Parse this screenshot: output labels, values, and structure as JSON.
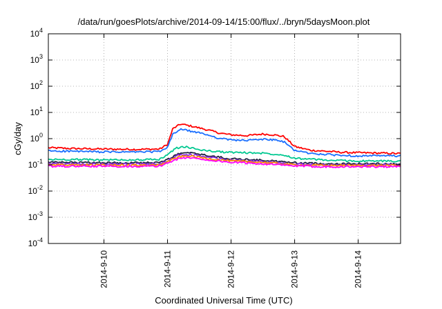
{
  "chart_data": {
    "type": "line",
    "title": "/data/run/goesPlots/archive/2014-09-14/15:00/flux/../bryn/5daysMoon.plot",
    "xlabel": "Coordinated Universal Time (UTC)",
    "ylabel": "cGy/day",
    "yscale": "log",
    "ylim": [
      0.0001,
      10000
    ],
    "xlim": [
      "2014-09-09T03:00",
      "2014-09-14T16:00"
    ],
    "grid": true,
    "x_ticks": [
      {
        "label": "2014-9-10",
        "date": "2014-09-10T00:00"
      },
      {
        "label": "2014-9-11",
        "date": "2014-09-11T00:00"
      },
      {
        "label": "2014-9-12",
        "date": "2014-09-12T00:00"
      },
      {
        "label": "2014-9-13",
        "date": "2014-09-13T00:00"
      },
      {
        "label": "2014-9-14",
        "date": "2014-09-14T00:00"
      }
    ],
    "y_ticks": [
      {
        "base": "10",
        "exp": "-4",
        "value": 0.0001
      },
      {
        "base": "10",
        "exp": "-3",
        "value": 0.001
      },
      {
        "base": "10",
        "exp": "-2",
        "value": 0.01
      },
      {
        "base": "10",
        "exp": "-1",
        "value": 0.1
      },
      {
        "base": "10",
        "exp": "0",
        "value": 1
      },
      {
        "base": "10",
        "exp": "1",
        "value": 10
      },
      {
        "base": "10",
        "exp": "2",
        "value": 100
      },
      {
        "base": "10",
        "exp": "3",
        "value": 1000
      },
      {
        "base": "10",
        "exp": "4",
        "value": 10000
      }
    ],
    "series": [
      {
        "color": "#ff0000",
        "x": [
          "2014-09-09T03:00",
          "2014-09-09T12:00",
          "2014-09-10T00:00",
          "2014-09-10T12:00",
          "2014-09-10T21:00",
          "2014-09-11T00:00",
          "2014-09-11T02:00",
          "2014-09-11T05:00",
          "2014-09-11T09:00",
          "2014-09-11T14:00",
          "2014-09-11T20:00",
          "2014-09-12T00:00",
          "2014-09-12T06:00",
          "2014-09-12T12:00",
          "2014-09-12T16:00",
          "2014-09-12T20:00",
          "2014-09-13T00:00",
          "2014-09-13T06:00",
          "2014-09-13T12:00",
          "2014-09-13T18:00",
          "2014-09-14T00:00",
          "2014-09-14T08:00",
          "2014-09-14T16:00"
        ],
        "y": [
          0.45,
          0.42,
          0.4,
          0.39,
          0.4,
          0.6,
          2.4,
          3.6,
          3.0,
          2.3,
          1.6,
          1.4,
          1.3,
          1.5,
          1.4,
          1.2,
          0.5,
          0.36,
          0.33,
          0.3,
          0.29,
          0.28,
          0.27
        ]
      },
      {
        "color": "#1a6fff",
        "x": [
          "2014-09-09T03:00",
          "2014-09-09T12:00",
          "2014-09-10T00:00",
          "2014-09-10T12:00",
          "2014-09-10T21:00",
          "2014-09-11T00:00",
          "2014-09-11T02:00",
          "2014-09-11T05:00",
          "2014-09-11T09:00",
          "2014-09-11T14:00",
          "2014-09-11T20:00",
          "2014-09-12T00:00",
          "2014-09-12T06:00",
          "2014-09-12T12:00",
          "2014-09-12T16:00",
          "2014-09-12T20:00",
          "2014-09-13T00:00",
          "2014-09-13T06:00",
          "2014-09-13T12:00",
          "2014-09-13T18:00",
          "2014-09-14T00:00",
          "2014-09-14T08:00",
          "2014-09-14T16:00"
        ],
        "y": [
          0.34,
          0.33,
          0.31,
          0.31,
          0.32,
          0.45,
          1.5,
          2.3,
          1.9,
          1.5,
          1.0,
          0.9,
          0.85,
          0.95,
          0.9,
          0.75,
          0.36,
          0.27,
          0.25,
          0.23,
          0.22,
          0.22,
          0.22
        ]
      },
      {
        "color": "#00c890",
        "x": [
          "2014-09-09T03:00",
          "2014-09-09T12:00",
          "2014-09-10T00:00",
          "2014-09-10T12:00",
          "2014-09-10T21:00",
          "2014-09-11T00:00",
          "2014-09-11T03:00",
          "2014-09-11T06:00",
          "2014-09-11T12:00",
          "2014-09-11T18:00",
          "2014-09-12T00:00",
          "2014-09-12T12:00",
          "2014-09-12T20:00",
          "2014-09-13T00:00",
          "2014-09-13T12:00",
          "2014-09-14T00:00",
          "2014-09-14T16:00"
        ],
        "y": [
          0.16,
          0.16,
          0.155,
          0.155,
          0.16,
          0.25,
          0.42,
          0.5,
          0.38,
          0.32,
          0.3,
          0.28,
          0.24,
          0.18,
          0.15,
          0.14,
          0.14
        ]
      },
      {
        "color": "#202040",
        "x": [
          "2014-09-09T03:00",
          "2014-09-10T00:00",
          "2014-09-10T21:00",
          "2014-09-11T00:00",
          "2014-09-11T04:00",
          "2014-09-11T08:00",
          "2014-09-11T16:00",
          "2014-09-12T00:00",
          "2014-09-12T12:00",
          "2014-09-13T00:00",
          "2014-09-13T12:00",
          "2014-09-14T00:00",
          "2014-09-14T16:00"
        ],
        "y": [
          0.125,
          0.12,
          0.12,
          0.16,
          0.26,
          0.29,
          0.22,
          0.17,
          0.15,
          0.12,
          0.11,
          0.11,
          0.11
        ]
      },
      {
        "color": "#8a2be2",
        "x": [
          "2014-09-09T03:00",
          "2014-09-10T00:00",
          "2014-09-10T21:00",
          "2014-09-11T00:00",
          "2014-09-11T04:00",
          "2014-09-11T08:00",
          "2014-09-11T16:00",
          "2014-09-12T00:00",
          "2014-09-12T12:00",
          "2014-09-13T00:00",
          "2014-09-13T12:00",
          "2014-09-14T00:00",
          "2014-09-14T16:00"
        ],
        "y": [
          0.11,
          0.108,
          0.108,
          0.14,
          0.23,
          0.25,
          0.19,
          0.15,
          0.135,
          0.11,
          0.1,
          0.1,
          0.1
        ]
      },
      {
        "color": "#ff8c00",
        "x": [
          "2014-09-09T03:00",
          "2014-09-10T00:00",
          "2014-09-10T21:00",
          "2014-09-11T00:00",
          "2014-09-11T04:00",
          "2014-09-11T08:00",
          "2014-09-11T16:00",
          "2014-09-12T00:00",
          "2014-09-12T12:00",
          "2014-09-13T00:00",
          "2014-09-13T12:00",
          "2014-09-14T00:00",
          "2014-09-14T16:00"
        ],
        "y": [
          0.1,
          0.098,
          0.098,
          0.13,
          0.2,
          0.22,
          0.17,
          0.14,
          0.125,
          0.1,
          0.095,
          0.095,
          0.095
        ]
      },
      {
        "color": "#ff00ff",
        "x": [
          "2014-09-09T03:00",
          "2014-09-10T00:00",
          "2014-09-10T21:00",
          "2014-09-11T00:00",
          "2014-09-11T04:00",
          "2014-09-11T08:00",
          "2014-09-11T16:00",
          "2014-09-12T00:00",
          "2014-09-12T12:00",
          "2014-09-13T00:00",
          "2014-09-13T12:00",
          "2014-09-14T00:00",
          "2014-09-14T16:00"
        ],
        "y": [
          0.088,
          0.088,
          0.088,
          0.12,
          0.17,
          0.19,
          0.15,
          0.125,
          0.11,
          0.09,
          0.085,
          0.085,
          0.085
        ]
      }
    ]
  }
}
